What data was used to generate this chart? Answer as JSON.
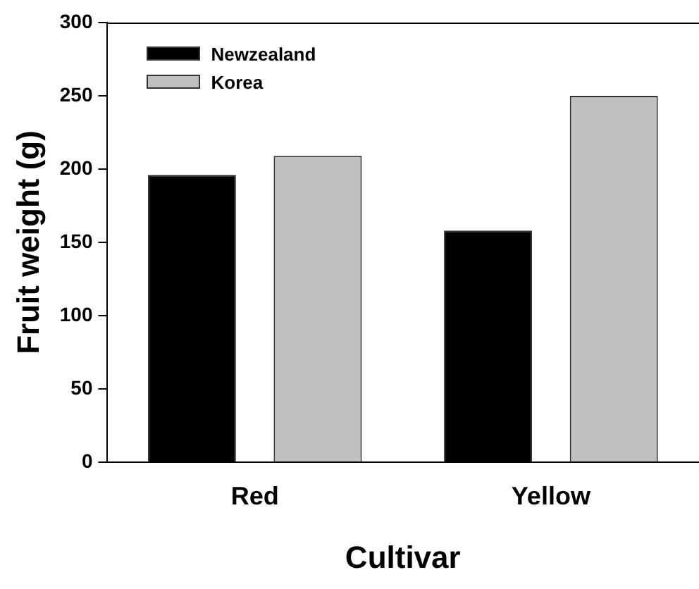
{
  "chart_data": {
    "type": "bar",
    "xlabel": "Cultivar",
    "ylabel": "Fruit weight (g)",
    "categories": [
      "Red",
      "Yellow"
    ],
    "series": [
      {
        "name": "Newzealand",
        "color": "#000000",
        "values": [
          196,
          158
        ]
      },
      {
        "name": "Korea",
        "color": "#c0c0c0",
        "values": [
          209,
          250
        ]
      }
    ],
    "ylim": [
      0,
      300
    ],
    "yticks": [
      0,
      50,
      100,
      150,
      200,
      250,
      300
    ],
    "grid": false,
    "legend": "top left"
  }
}
